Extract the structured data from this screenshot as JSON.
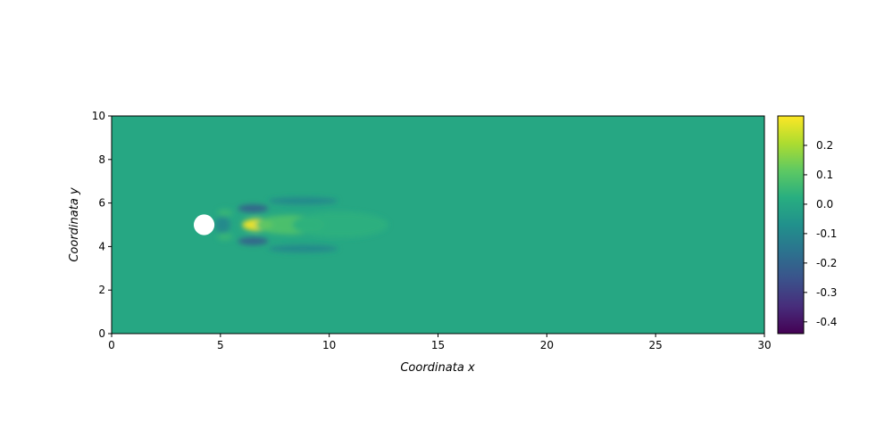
{
  "chart_data": {
    "type": "heatmap",
    "title": "",
    "xlabel": "Coordinata x",
    "ylabel": "Coordinata y",
    "xlim": [
      0,
      30
    ],
    "ylim": [
      0,
      10
    ],
    "x_ticks": [
      "0",
      "5",
      "10",
      "15",
      "20",
      "25",
      "30"
    ],
    "x_tick_values": [
      0,
      5,
      10,
      15,
      20,
      25,
      30
    ],
    "y_ticks": [
      "0",
      "2",
      "4",
      "6",
      "8",
      "10"
    ],
    "y_tick_values": [
      0,
      2,
      4,
      6,
      8,
      10
    ],
    "colormap": "viridis",
    "colorbar": {
      "min": -0.44,
      "max": 0.3,
      "ticks": [
        "0.2",
        "0.1",
        "0.0",
        "-0.1",
        "-0.2",
        "-0.3",
        "-0.4"
      ],
      "tick_values": [
        0.2,
        0.1,
        0.0,
        -0.1,
        -0.2,
        -0.3,
        -0.4
      ]
    },
    "background_value": 0.0,
    "obstacle": {
      "shape": "circle",
      "center": [
        4.25,
        5.0
      ],
      "radius": 0.5,
      "fill": "#ffffff"
    },
    "features": [
      {
        "kind": "positive",
        "x": 6.7,
        "y": 5.0,
        "sx": 0.7,
        "sy": 0.28,
        "value": 0.3
      },
      {
        "kind": "positive",
        "x": 8.2,
        "y": 5.0,
        "sx": 1.6,
        "sy": 0.45,
        "value": 0.09
      },
      {
        "kind": "positive",
        "x": 10.5,
        "y": 5.0,
        "sx": 2.2,
        "sy": 0.6,
        "value": 0.03
      },
      {
        "kind": "negative",
        "x": 6.5,
        "y": 5.75,
        "sx": 0.7,
        "sy": 0.18,
        "value": -0.22
      },
      {
        "kind": "negative",
        "x": 6.5,
        "y": 4.25,
        "sx": 0.7,
        "sy": 0.18,
        "value": -0.22
      },
      {
        "kind": "negative",
        "x": 8.8,
        "y": 6.1,
        "sx": 1.6,
        "sy": 0.18,
        "value": -0.1
      },
      {
        "kind": "negative",
        "x": 8.8,
        "y": 3.9,
        "sx": 1.6,
        "sy": 0.18,
        "value": -0.1
      },
      {
        "kind": "negative",
        "x": 5.1,
        "y": 5.0,
        "sx": 0.35,
        "sy": 0.4,
        "value": -0.1
      },
      {
        "kind": "positive",
        "x": 5.2,
        "y": 5.55,
        "sx": 0.35,
        "sy": 0.18,
        "value": 0.05
      },
      {
        "kind": "positive",
        "x": 5.2,
        "y": 4.45,
        "sx": 0.35,
        "sy": 0.18,
        "value": 0.05
      }
    ]
  }
}
